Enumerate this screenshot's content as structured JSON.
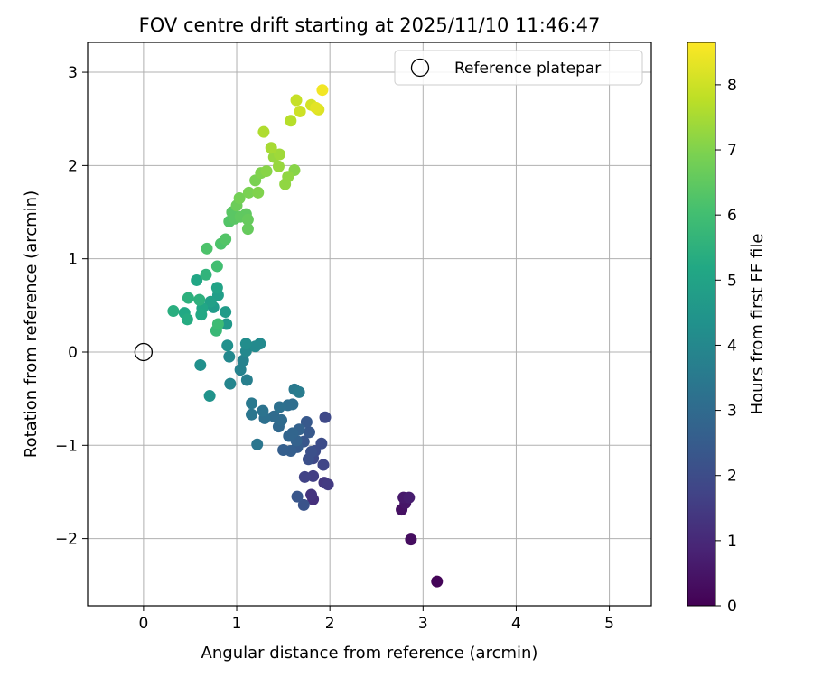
{
  "chart_data": {
    "type": "scatter",
    "title": "FOV centre drift starting at 2025/11/10 11:46:47",
    "xlabel": "Angular distance from reference (arcmin)",
    "ylabel": "Rotation from reference (arcmin)",
    "xlim": [
      -0.6,
      5.45
    ],
    "ylim": [
      -2.72,
      3.32
    ],
    "xticks": [
      "0",
      "1",
      "2",
      "3",
      "4",
      "5"
    ],
    "yticks": [
      "−2",
      "−1",
      "0",
      "1",
      "2",
      "3"
    ],
    "grid": true,
    "legend": {
      "placement": "top-right",
      "entries": [
        "Reference platepar"
      ]
    },
    "reference": {
      "x": 0,
      "y": 0
    },
    "colorbar": {
      "label": "Hours from first FF file",
      "range": [
        0,
        8.65
      ],
      "ticks": [
        "0",
        "1",
        "2",
        "3",
        "4",
        "5",
        "6",
        "7",
        "8"
      ],
      "colormap": "viridis"
    },
    "points": [
      [
        3.15,
        -2.46,
        0.1
      ],
      [
        2.87,
        -2.01,
        0.3
      ],
      [
        2.77,
        -1.69,
        0.4
      ],
      [
        2.81,
        -1.62,
        0.5
      ],
      [
        2.79,
        -1.56,
        0.6
      ],
      [
        2.85,
        -1.56,
        0.7
      ],
      [
        1.82,
        -1.58,
        1.2
      ],
      [
        1.8,
        -1.53,
        1.3
      ],
      [
        1.94,
        -1.4,
        1.4
      ],
      [
        1.98,
        -1.42,
        1.5
      ],
      [
        1.82,
        -1.33,
        1.6
      ],
      [
        1.73,
        -1.34,
        1.7
      ],
      [
        1.93,
        -1.21,
        1.8
      ],
      [
        1.82,
        -1.14,
        1.9
      ],
      [
        1.95,
        -0.7,
        1.9
      ],
      [
        1.91,
        -0.98,
        2.0
      ],
      [
        1.84,
        -1.06,
        2.0
      ],
      [
        1.77,
        -1.15,
        2.1
      ],
      [
        1.8,
        -1.07,
        2.1
      ],
      [
        1.72,
        -1.64,
        2.2
      ],
      [
        1.65,
        -1.55,
        2.3
      ],
      [
        1.72,
        -0.96,
        2.3
      ],
      [
        1.78,
        -0.86,
        2.4
      ],
      [
        1.75,
        -0.75,
        2.4
      ],
      [
        1.65,
        -1.02,
        2.5
      ],
      [
        1.58,
        -1.06,
        2.6
      ],
      [
        1.5,
        -1.05,
        2.6
      ],
      [
        1.64,
        -0.95,
        2.7
      ],
      [
        1.67,
        -0.83,
        2.7
      ],
      [
        1.6,
        -0.87,
        2.8
      ],
      [
        1.56,
        -0.9,
        2.8
      ],
      [
        1.45,
        -0.8,
        2.9
      ],
      [
        1.4,
        -0.69,
        3.0
      ],
      [
        1.48,
        -0.73,
        3.0
      ],
      [
        1.6,
        -0.56,
        3.1
      ],
      [
        1.55,
        -0.57,
        3.1
      ],
      [
        1.46,
        -0.59,
        3.2
      ],
      [
        1.3,
        -0.71,
        3.2
      ],
      [
        1.28,
        -0.63,
        3.3
      ],
      [
        1.16,
        -0.67,
        3.4
      ],
      [
        1.22,
        -0.99,
        3.4
      ],
      [
        1.16,
        -0.55,
        3.5
      ],
      [
        1.62,
        -0.4,
        3.5
      ],
      [
        1.67,
        -0.43,
        3.6
      ],
      [
        1.11,
        -0.3,
        3.7
      ],
      [
        1.04,
        -0.19,
        3.8
      ],
      [
        1.07,
        -0.09,
        3.8
      ],
      [
        0.93,
        -0.34,
        3.9
      ],
      [
        0.92,
        -0.05,
        4.0
      ],
      [
        1.1,
        0.01,
        4.0
      ],
      [
        1.2,
        0.06,
        4.1
      ],
      [
        1.25,
        0.09,
        4.1
      ],
      [
        1.1,
        0.09,
        4.2
      ],
      [
        0.9,
        0.07,
        4.3
      ],
      [
        0.61,
        -0.14,
        4.3
      ],
      [
        0.71,
        -0.47,
        4.4
      ],
      [
        0.89,
        0.3,
        4.6
      ],
      [
        0.88,
        0.43,
        4.7
      ],
      [
        0.75,
        0.48,
        4.7
      ],
      [
        0.8,
        0.61,
        4.8
      ],
      [
        0.72,
        0.54,
        4.9
      ],
      [
        0.79,
        0.69,
        5.0
      ],
      [
        0.63,
        0.47,
        5.1
      ],
      [
        0.57,
        0.77,
        5.1
      ],
      [
        0.62,
        0.4,
        5.2
      ],
      [
        0.44,
        0.42,
        5.2
      ],
      [
        0.47,
        0.35,
        5.3
      ],
      [
        0.32,
        0.44,
        5.4
      ],
      [
        0.48,
        0.58,
        5.5
      ],
      [
        0.6,
        0.56,
        5.5
      ],
      [
        0.67,
        0.83,
        5.6
      ],
      [
        0.78,
        0.23,
        5.8
      ],
      [
        0.8,
        0.3,
        5.9
      ],
      [
        0.79,
        0.92,
        6.0
      ],
      [
        0.68,
        1.11,
        6.2
      ],
      [
        0.83,
        1.16,
        6.2
      ],
      [
        0.88,
        1.21,
        6.3
      ],
      [
        0.92,
        1.4,
        6.3
      ],
      [
        0.98,
        1.43,
        6.4
      ],
      [
        0.95,
        1.5,
        6.4
      ],
      [
        1.04,
        1.45,
        6.5
      ],
      [
        1.1,
        1.48,
        6.5
      ],
      [
        1.12,
        1.42,
        6.6
      ],
      [
        1.12,
        1.32,
        6.6
      ],
      [
        1.0,
        1.57,
        6.7
      ],
      [
        1.03,
        1.65,
        6.8
      ],
      [
        1.13,
        1.71,
        6.9
      ],
      [
        1.2,
        1.84,
        6.9
      ],
      [
        1.23,
        1.71,
        7.0
      ],
      [
        1.26,
        1.92,
        7.0
      ],
      [
        1.32,
        1.94,
        7.1
      ],
      [
        1.62,
        1.95,
        7.1
      ],
      [
        1.52,
        1.8,
        7.2
      ],
      [
        1.55,
        1.88,
        7.2
      ],
      [
        1.45,
        1.99,
        7.3
      ],
      [
        1.4,
        2.09,
        7.3
      ],
      [
        1.46,
        2.12,
        7.4
      ],
      [
        1.37,
        2.19,
        7.5
      ],
      [
        1.29,
        2.36,
        7.6
      ],
      [
        1.58,
        2.48,
        7.7
      ],
      [
        1.64,
        2.7,
        7.9
      ],
      [
        1.68,
        2.58,
        8.0
      ],
      [
        1.8,
        2.65,
        8.1
      ],
      [
        1.88,
        2.6,
        8.2
      ],
      [
        1.85,
        2.62,
        8.3
      ],
      [
        1.92,
        2.81,
        8.5
      ]
    ]
  }
}
